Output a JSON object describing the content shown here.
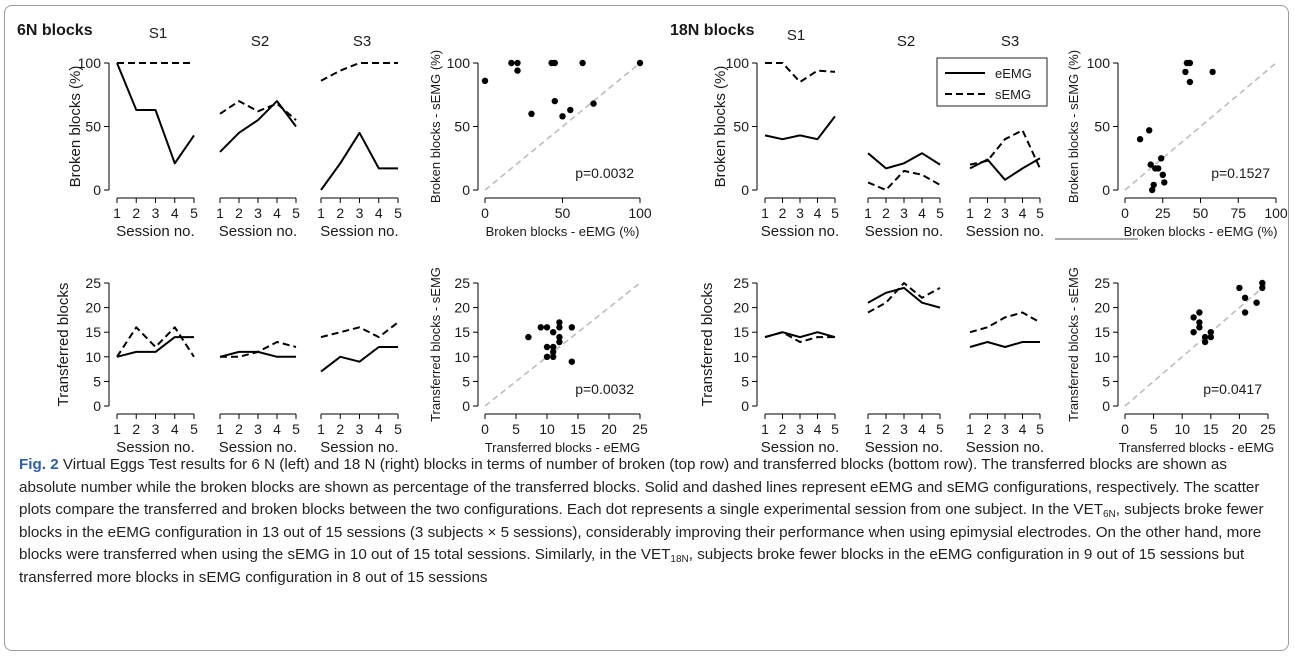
{
  "figure": {
    "caption": {
      "label": "Fig. 2",
      "text_part1": "Virtual Eggs Test results for 6 N (left) and 18 N (right) blocks in terms of number of broken (top row) and transferred blocks (bottom row). The transferred blocks are shown as absolute number while the broken blocks are shown as percentage of the transferred blocks. Solid and dashed lines represent eEMG and sEMG configurations, respectively. The scatter plots compare the transferred and broken blocks between the two configurations. Each dot represents a single experimental session from one subject. In the VET",
      "sub1": "6N",
      "text_part2": ", subjects broke fewer blocks in the eEMG configuration in 13 out of 15 sessions (3 subjects × 5 sessions), considerably improving their performance when using epimysial electrodes. On the other hand, more blocks were transferred when using the sEMG in 10 out of 15 total sessions. Similarly, in the VET",
      "sub2": "18N",
      "text_part3": ", subjects broke fewer blocks in the eEMG configuration in 9 out of 15 sessions but transferred more blocks in sEMG configuration in 8 out of 15 sessions"
    }
  },
  "panels": [
    {
      "title": "6N blocks",
      "subject_labels": [
        "S1",
        "S2",
        "S3"
      ]
    },
    {
      "title": "18N blocks",
      "subject_labels": [
        "S1",
        "S2",
        "S3"
      ]
    }
  ],
  "legend": {
    "entries": [
      {
        "label": "eEMG",
        "style": "solid"
      },
      {
        "label": "sEMG",
        "style": "dashed"
      }
    ]
  },
  "chart_data": [
    {
      "type": "line",
      "panel": "6N blocks",
      "row": "broken",
      "ylabel": "Broken blocks (%)",
      "xlabel": "Session no.",
      "x": [
        1,
        2,
        3,
        4,
        5
      ],
      "ylim": [
        0,
        100
      ],
      "yticks": [
        0,
        50,
        100
      ],
      "subjects": [
        {
          "name": "S1",
          "series": [
            {
              "name": "eEMG",
              "values": [
                100,
                63,
                63,
                21,
                43
              ]
            },
            {
              "name": "sEMG",
              "values": [
                100,
                100,
                100,
                100,
                100
              ]
            }
          ]
        },
        {
          "name": "S2",
          "series": [
            {
              "name": "eEMG",
              "values": [
                30,
                45,
                55,
                70,
                50
              ]
            },
            {
              "name": "sEMG",
              "values": [
                60,
                70,
                62,
                68,
                55
              ]
            }
          ]
        },
        {
          "name": "S3",
          "series": [
            {
              "name": "eEMG",
              "values": [
                0,
                21,
                45,
                17,
                17
              ]
            },
            {
              "name": "sEMG",
              "values": [
                86,
                94,
                100,
                100,
                100
              ]
            }
          ]
        }
      ]
    },
    {
      "type": "scatter",
      "panel": "6N blocks",
      "row": "broken",
      "xlabel": "Broken blocks - eEMG (%)",
      "ylabel": "Broken blocks - sEMG (%)",
      "xlim": [
        0,
        100
      ],
      "ylim": [
        0,
        100
      ],
      "xticks": [
        0,
        50,
        100
      ],
      "yticks": [
        0,
        50,
        100
      ],
      "annotation": "p=0.0032",
      "points": [
        [
          0,
          86
        ],
        [
          17,
          100
        ],
        [
          21,
          94
        ],
        [
          21,
          100
        ],
        [
          30,
          60
        ],
        [
          43,
          100
        ],
        [
          45,
          100
        ],
        [
          45,
          70
        ],
        [
          50,
          58
        ],
        [
          55,
          63
        ],
        [
          63,
          100
        ],
        [
          70,
          68
        ],
        [
          100,
          100
        ]
      ]
    },
    {
      "type": "line",
      "panel": "6N blocks",
      "row": "transferred",
      "ylabel": "Transferred blocks",
      "xlabel": "Session no.",
      "x": [
        1,
        2,
        3,
        4,
        5
      ],
      "ylim": [
        0,
        25
      ],
      "yticks": [
        0,
        5,
        10,
        15,
        20,
        25
      ],
      "subjects": [
        {
          "name": "S1",
          "series": [
            {
              "name": "eEMG",
              "values": [
                10,
                11,
                11,
                14,
                14
              ]
            },
            {
              "name": "sEMG",
              "values": [
                10,
                16,
                12,
                16,
                10
              ]
            }
          ]
        },
        {
          "name": "S2",
          "series": [
            {
              "name": "eEMG",
              "values": [
                10,
                11,
                11,
                10,
                10
              ]
            },
            {
              "name": "sEMG",
              "values": [
                10,
                10,
                11,
                13,
                12
              ]
            }
          ]
        },
        {
          "name": "S3",
          "series": [
            {
              "name": "eEMG",
              "values": [
                7,
                10,
                9,
                12,
                12
              ]
            },
            {
              "name": "sEMG",
              "values": [
                14,
                15,
                16,
                14,
                17
              ]
            }
          ]
        }
      ]
    },
    {
      "type": "scatter",
      "panel": "6N blocks",
      "row": "transferred",
      "xlabel": "Transferred blocks - eEMG",
      "ylabel": "Transferred blocks - sEMG",
      "xlim": [
        0,
        25
      ],
      "ylim": [
        0,
        25
      ],
      "xticks": [
        0,
        5,
        10,
        15,
        20,
        25
      ],
      "yticks": [
        0,
        5,
        10,
        15,
        20,
        25
      ],
      "annotation": "p=0.0032",
      "points": [
        [
          7,
          14
        ],
        [
          10,
          16
        ],
        [
          10,
          12
        ],
        [
          10,
          10
        ],
        [
          11,
          15
        ],
        [
          11,
          11
        ],
        [
          11,
          10
        ],
        [
          12,
          17
        ],
        [
          12,
          16
        ],
        [
          12,
          13
        ],
        [
          14,
          16
        ],
        [
          14,
          9
        ],
        [
          9,
          16
        ],
        [
          11,
          12
        ],
        [
          12,
          14
        ]
      ]
    },
    {
      "type": "line",
      "panel": "18N blocks",
      "row": "broken",
      "ylabel": "Broken blocks (%)",
      "xlabel": "Session no.",
      "x": [
        1,
        2,
        3,
        4,
        5
      ],
      "ylim": [
        0,
        100
      ],
      "yticks": [
        0,
        50,
        100
      ],
      "subjects": [
        {
          "name": "S1",
          "series": [
            {
              "name": "eEMG",
              "values": [
                43,
                40,
                43,
                40,
                58
              ]
            },
            {
              "name": "sEMG",
              "values": [
                100,
                100,
                85,
                94,
                93
              ]
            }
          ]
        },
        {
          "name": "S2",
          "series": [
            {
              "name": "eEMG",
              "values": [
                29,
                17,
                21,
                29,
                20
              ]
            },
            {
              "name": "sEMG",
              "values": [
                6,
                0,
                15,
                12,
                4
              ]
            }
          ]
        },
        {
          "name": "S3",
          "series": [
            {
              "name": "eEMG",
              "values": [
                17,
                24,
                8,
                17,
                25
              ]
            },
            {
              "name": "sEMG",
              "values": [
                20,
                23,
                40,
                47,
                17
              ]
            }
          ]
        }
      ]
    },
    {
      "type": "scatter",
      "panel": "18N blocks",
      "row": "broken",
      "xlabel": "Broken blocks - eEMG (%)",
      "ylabel": "Broken blocks - sEMG (%)",
      "xlim": [
        0,
        100
      ],
      "ylim": [
        0,
        100
      ],
      "xticks": [
        0,
        25,
        50,
        75,
        100
      ],
      "yticks": [
        0,
        50,
        100
      ],
      "annotation": "p=0.1527",
      "points": [
        [
          10,
          40
        ],
        [
          16,
          47
        ],
        [
          17,
          20
        ],
        [
          18,
          0
        ],
        [
          19,
          4
        ],
        [
          20,
          17
        ],
        [
          22,
          17
        ],
        [
          24,
          25
        ],
        [
          25,
          12
        ],
        [
          26,
          6
        ],
        [
          40,
          93
        ],
        [
          41,
          100
        ],
        [
          43,
          100
        ],
        [
          43,
          85
        ],
        [
          58,
          93
        ]
      ]
    },
    {
      "type": "line",
      "panel": "18N blocks",
      "row": "transferred",
      "ylabel": "Transferred blocks",
      "xlabel": "Session no.",
      "x": [
        1,
        2,
        3,
        4,
        5
      ],
      "ylim": [
        0,
        25
      ],
      "yticks": [
        0,
        5,
        10,
        15,
        20,
        25
      ],
      "subjects": [
        {
          "name": "S1",
          "series": [
            {
              "name": "eEMG",
              "values": [
                14,
                15,
                14,
                15,
                14
              ]
            },
            {
              "name": "sEMG",
              "values": [
                14,
                15,
                13,
                14,
                14
              ]
            }
          ]
        },
        {
          "name": "S2",
          "series": [
            {
              "name": "eEMG",
              "values": [
                21,
                23,
                24,
                21,
                20
              ]
            },
            {
              "name": "sEMG",
              "values": [
                19,
                21,
                25,
                22,
                24
              ]
            }
          ]
        },
        {
          "name": "S3",
          "series": [
            {
              "name": "eEMG",
              "values": [
                12,
                13,
                12,
                13,
                13
              ]
            },
            {
              "name": "sEMG",
              "values": [
                15,
                16,
                18,
                19,
                17
              ]
            }
          ]
        }
      ]
    },
    {
      "type": "scatter",
      "panel": "18N blocks",
      "row": "transferred",
      "xlabel": "Transferred blocks - eEMG",
      "ylabel": "Transferred blocks - sEMG",
      "xlim": [
        0,
        25
      ],
      "ylim": [
        0,
        25
      ],
      "xticks": [
        0,
        5,
        10,
        15,
        20,
        25
      ],
      "yticks": [
        0,
        5,
        10,
        15,
        20,
        25
      ],
      "annotation": "p=0.0417",
      "points": [
        [
          12,
          15
        ],
        [
          12,
          18
        ],
        [
          13,
          19
        ],
        [
          13,
          16
        ],
        [
          13,
          17
        ],
        [
          14,
          14
        ],
        [
          14,
          13
        ],
        [
          15,
          15
        ],
        [
          15,
          14
        ],
        [
          20,
          24
        ],
        [
          21,
          19
        ],
        [
          21,
          22
        ],
        [
          23,
          21
        ],
        [
          24,
          25
        ],
        [
          24,
          24
        ]
      ]
    }
  ]
}
